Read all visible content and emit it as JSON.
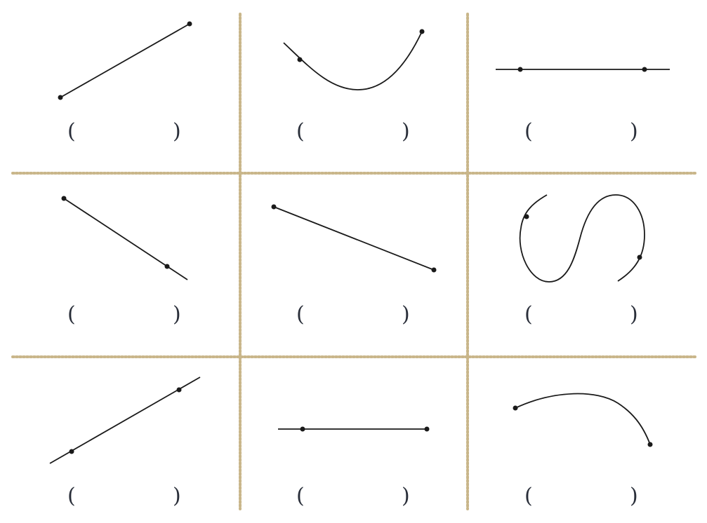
{
  "colors": {
    "line": "#1a1a1a",
    "point": "#1a1a1a",
    "divider": "#c9b68a",
    "paren": "#2a2f3a"
  },
  "answer_brackets": {
    "open": "(",
    "close": ")"
  },
  "cells": [
    {
      "id": "cell-1",
      "figure": "segment",
      "description_kind": "two endpoints"
    },
    {
      "id": "cell-2",
      "figure": "curve",
      "description_kind": "curve with endpoint and interior point"
    },
    {
      "id": "cell-3",
      "figure": "line",
      "description_kind": "horizontal line through two points"
    },
    {
      "id": "cell-4",
      "figure": "ray",
      "description_kind": "ray from point through point"
    },
    {
      "id": "cell-5",
      "figure": "segment",
      "description_kind": "two endpoints"
    },
    {
      "id": "cell-6",
      "figure": "curve",
      "description_kind": "S-shaped curve with two points"
    },
    {
      "id": "cell-7",
      "figure": "line",
      "description_kind": "line through two points"
    },
    {
      "id": "cell-8",
      "figure": "ray",
      "description_kind": "ray from left through point"
    },
    {
      "id": "cell-9",
      "figure": "curve",
      "description_kind": "arc with two endpoints"
    }
  ]
}
